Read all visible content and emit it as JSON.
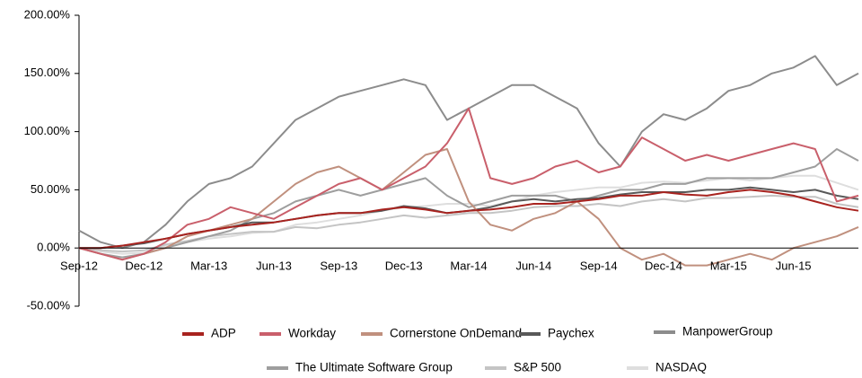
{
  "chart_data": {
    "type": "line",
    "categories": [
      "Sep-12",
      null,
      null,
      "Dec-12",
      null,
      null,
      "Mar-13",
      null,
      null,
      "Jun-13",
      null,
      null,
      "Sep-13",
      null,
      null,
      "Dec-13",
      null,
      null,
      "Mar-14",
      null,
      null,
      "Jun-14",
      null,
      null,
      "Sep-14",
      null,
      null,
      "Dec-14",
      null,
      null,
      "Mar-15",
      null,
      null,
      "Jun-15",
      null,
      null,
      null
    ],
    "ylim": [
      -50,
      200
    ],
    "yticks": [
      {
        "value": -50,
        "label": "-50.00%"
      },
      {
        "value": 0,
        "label": "0.00%"
      },
      {
        "value": 50,
        "label": "50.00%"
      },
      {
        "value": 100,
        "label": "100.00%"
      },
      {
        "value": 150,
        "label": "150.00%"
      },
      {
        "value": 200,
        "label": "200.00%"
      }
    ],
    "grid": false,
    "legend": "bottom",
    "series": [
      {
        "name": "ADP",
        "color": "#a8231f",
        "values": [
          0,
          0,
          2,
          5,
          8,
          12,
          15,
          18,
          20,
          22,
          25,
          28,
          30,
          30,
          33,
          35,
          33,
          30,
          32,
          33,
          35,
          38,
          38,
          40,
          42,
          45,
          45,
          48,
          46,
          45,
          48,
          50,
          48,
          45,
          40,
          35,
          32
        ]
      },
      {
        "name": "Workday",
        "color": "#c95f6b",
        "values": [
          0,
          -5,
          -10,
          -5,
          5,
          20,
          25,
          35,
          30,
          25,
          35,
          45,
          55,
          60,
          50,
          60,
          70,
          90,
          120,
          60,
          55,
          60,
          70,
          75,
          65,
          70,
          95,
          85,
          75,
          80,
          75,
          80,
          85,
          90,
          85,
          40,
          45
        ]
      },
      {
        "name": "Cornerstone OnDemand",
        "color": "#c0907e",
        "values": [
          0,
          -5,
          -10,
          -5,
          0,
          10,
          15,
          20,
          25,
          40,
          55,
          65,
          70,
          60,
          50,
          65,
          80,
          85,
          40,
          20,
          15,
          25,
          30,
          40,
          25,
          0,
          -10,
          -5,
          -15,
          -15,
          -10,
          -5,
          -10,
          0,
          5,
          10,
          18
        ]
      },
      {
        "name": "Paychex",
        "color": "#595959",
        "values": [
          0,
          0,
          2,
          4,
          8,
          12,
          15,
          18,
          22,
          22,
          25,
          28,
          30,
          30,
          32,
          36,
          34,
          30,
          32,
          35,
          40,
          42,
          40,
          42,
          43,
          46,
          48,
          48,
          48,
          50,
          50,
          52,
          50,
          48,
          50,
          45,
          42
        ]
      },
      {
        "name": "ManpowerGroup",
        "color": "#8c8c8c",
        "values": [
          15,
          5,
          0,
          5,
          20,
          40,
          55,
          60,
          70,
          90,
          110,
          120,
          130,
          135,
          140,
          145,
          140,
          110,
          120,
          130,
          140,
          140,
          130,
          120,
          90,
          70,
          100,
          115,
          110,
          120,
          135,
          140,
          150,
          155,
          165,
          140,
          150
        ]
      },
      {
        "name": "The Ultimate Software Group",
        "color": "#9e9e9e",
        "values": [
          0,
          -5,
          -8,
          -5,
          0,
          5,
          10,
          15,
          25,
          30,
          40,
          45,
          50,
          45,
          50,
          55,
          60,
          45,
          35,
          40,
          45,
          45,
          45,
          40,
          45,
          50,
          50,
          55,
          55,
          60,
          60,
          60,
          60,
          65,
          70,
          85,
          75
        ]
      },
      {
        "name": "S&P 500",
        "color": "#c4c4c4",
        "values": [
          0,
          -2,
          -3,
          -2,
          3,
          6,
          10,
          12,
          14,
          14,
          18,
          17,
          20,
          22,
          25,
          28,
          26,
          28,
          30,
          30,
          32,
          35,
          36,
          36,
          38,
          36,
          40,
          42,
          40,
          43,
          43,
          44,
          45,
          44,
          44,
          38,
          35
        ]
      },
      {
        "name": "NASDAQ",
        "color": "#dedede",
        "values": [
          0,
          -3,
          -5,
          -4,
          2,
          5,
          8,
          10,
          13,
          14,
          20,
          22,
          25,
          28,
          32,
          35,
          36,
          38,
          38,
          36,
          40,
          45,
          48,
          50,
          52,
          52,
          56,
          57,
          56,
          58,
          60,
          58,
          60,
          62,
          62,
          56,
          50
        ]
      }
    ]
  }
}
